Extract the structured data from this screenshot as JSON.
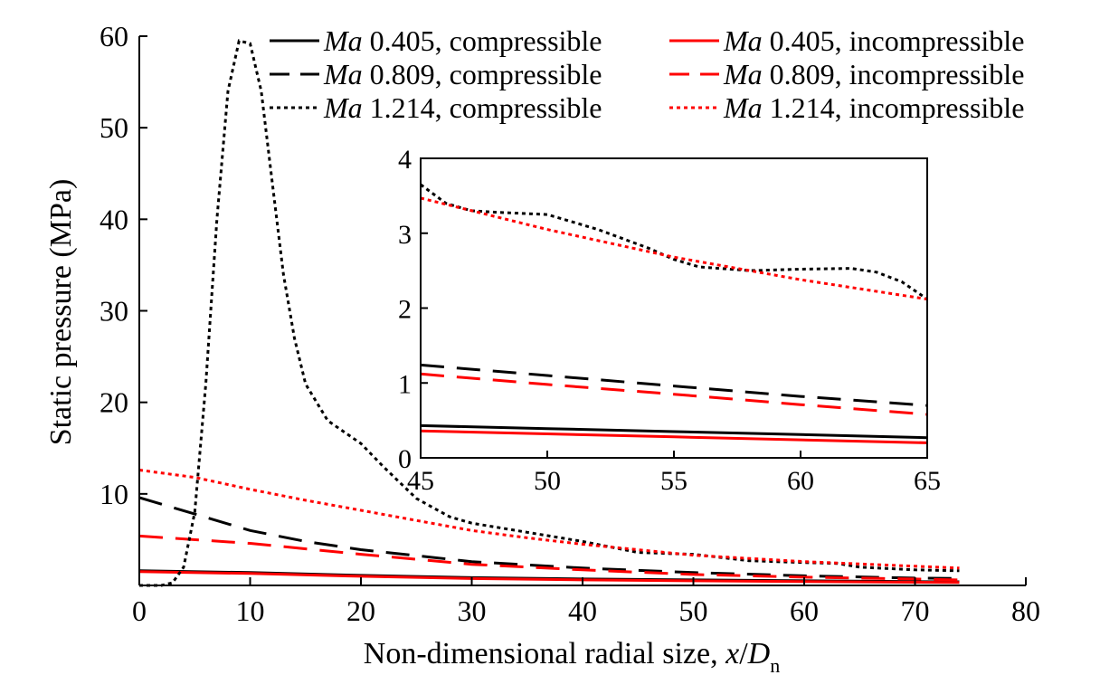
{
  "chart_data": [
    {
      "type": "line",
      "role": "main",
      "xlabel": "Non-dimensional radial size, x/D_n",
      "xlabel_parts": {
        "main": "Non-dimensional radial size, ",
        "var_x": "x",
        "slash": "/",
        "var_d": "D",
        "sub": "n"
      },
      "ylabel": "Static pressure (MPa)",
      "xlim": [
        0,
        80
      ],
      "ylim": [
        0,
        60
      ],
      "xticks": [
        0,
        10,
        20,
        30,
        40,
        50,
        60,
        70,
        80
      ],
      "yticks": [
        10,
        20,
        30,
        40,
        50,
        60
      ],
      "xtick_labels": [
        "0",
        "10",
        "20",
        "30",
        "40",
        "50",
        "60",
        "70",
        "80"
      ],
      "ytick_labels": [
        "10",
        "20",
        "30",
        "40",
        "50",
        "60"
      ],
      "grid": false,
      "legend_position": "top-right",
      "series": [
        {
          "name": "Ma 0.405, compressible",
          "legend_prefix": "Ma",
          "legend_rest": " 0.405, compressible",
          "color": "#000000",
          "style": "solid",
          "x": [
            0,
            10,
            20,
            30,
            40,
            50,
            60,
            70,
            74
          ],
          "y": [
            1.6,
            1.4,
            1.1,
            0.85,
            0.7,
            0.6,
            0.5,
            0.42,
            0.4
          ]
        },
        {
          "name": "Ma 0.405, incompressible",
          "legend_prefix": "Ma",
          "legend_rest": " 0.405, incompressible",
          "color": "#ff0000",
          "style": "solid",
          "x": [
            0,
            10,
            20,
            30,
            40,
            50,
            60,
            70,
            74
          ],
          "y": [
            1.5,
            1.3,
            1.0,
            0.75,
            0.6,
            0.5,
            0.42,
            0.35,
            0.32
          ]
        },
        {
          "name": "Ma 0.809, compressible",
          "legend_prefix": "Ma",
          "legend_rest": " 0.809, compressible",
          "color": "#000000",
          "style": "dashed",
          "x": [
            0,
            5,
            10,
            15,
            20,
            30,
            40,
            50,
            60,
            70,
            74
          ],
          "y": [
            9.6,
            7.8,
            6.0,
            4.8,
            3.9,
            2.6,
            1.9,
            1.4,
            1.05,
            0.8,
            0.75
          ]
        },
        {
          "name": "Ma 0.809, incompressible",
          "legend_prefix": "Ma",
          "legend_rest": " 0.809, incompressible",
          "color": "#ff0000",
          "style": "dashed",
          "x": [
            0,
            10,
            20,
            30,
            40,
            50,
            60,
            70,
            74
          ],
          "y": [
            5.4,
            4.6,
            3.4,
            2.3,
            1.7,
            1.2,
            0.9,
            0.7,
            0.6
          ]
        },
        {
          "name": "Ma 1.214, compressible",
          "legend_prefix": "Ma",
          "legend_rest": " 1.214, compressible",
          "color": "#000000",
          "style": "dotted",
          "x": [
            0,
            2,
            3,
            4,
            5,
            6,
            7,
            8,
            9,
            10,
            11,
            12,
            13,
            14,
            15,
            17,
            20,
            22,
            25,
            28,
            30,
            35,
            40,
            45,
            50,
            55,
            60,
            63,
            65,
            70,
            74
          ],
          "y": [
            0,
            0,
            0.3,
            2,
            8,
            22,
            40,
            54,
            59.5,
            59.2,
            54,
            44,
            34,
            27,
            22,
            18,
            15.5,
            13,
            9.5,
            7.5,
            6.8,
            5.8,
            4.8,
            3.6,
            3.4,
            2.7,
            2.5,
            2.4,
            2.0,
            1.7,
            1.6
          ]
        },
        {
          "name": "Ma 1.214, incompressible",
          "legend_prefix": "Ma",
          "legend_rest": " 1.214, incompressible",
          "color": "#ff0000",
          "style": "dotted",
          "x": [
            0,
            5,
            10,
            15,
            20,
            25,
            30,
            35,
            40,
            50,
            60,
            70,
            74
          ],
          "y": [
            12.6,
            11.8,
            10.5,
            9.3,
            8.2,
            7.1,
            6.0,
            5.2,
            4.5,
            3.3,
            2.6,
            2.1,
            1.9
          ]
        }
      ]
    },
    {
      "type": "line",
      "role": "inset",
      "xlim": [
        45,
        65
      ],
      "ylim": [
        0,
        4
      ],
      "xticks": [
        45,
        50,
        55,
        60,
        65
      ],
      "yticks": [
        0,
        1,
        2,
        3,
        4
      ],
      "xtick_labels": [
        "45",
        "50",
        "55",
        "60",
        "65"
      ],
      "ytick_labels": [
        "0",
        "1",
        "2",
        "3",
        "4"
      ],
      "grid": false,
      "series": [
        {
          "name": "Ma 0.405, compressible",
          "color": "#000000",
          "style": "solid",
          "x": [
            45,
            50,
            55,
            60,
            65
          ],
          "y": [
            0.43,
            0.39,
            0.35,
            0.31,
            0.27
          ]
        },
        {
          "name": "Ma 0.405, incompressible",
          "color": "#ff0000",
          "style": "solid",
          "x": [
            45,
            50,
            55,
            60,
            65
          ],
          "y": [
            0.36,
            0.32,
            0.28,
            0.24,
            0.2
          ]
        },
        {
          "name": "Ma 0.809, compressible",
          "color": "#000000",
          "style": "dashed",
          "x": [
            45,
            50,
            55,
            60,
            65
          ],
          "y": [
            1.24,
            1.1,
            0.96,
            0.82,
            0.7
          ]
        },
        {
          "name": "Ma 0.809, incompressible",
          "color": "#ff0000",
          "style": "dashed",
          "x": [
            45,
            50,
            55,
            60,
            65
          ],
          "y": [
            1.12,
            0.98,
            0.85,
            0.71,
            0.58
          ]
        },
        {
          "name": "Ma 1.214, compressible",
          "color": "#000000",
          "style": "dotted",
          "x": [
            45,
            46,
            47,
            48,
            50,
            52,
            54,
            55,
            56,
            58,
            60,
            62,
            63,
            64,
            65
          ],
          "y": [
            3.65,
            3.4,
            3.3,
            3.28,
            3.25,
            3.05,
            2.8,
            2.65,
            2.55,
            2.5,
            2.52,
            2.53,
            2.48,
            2.35,
            2.12
          ]
        },
        {
          "name": "Ma 1.214, incompressible",
          "color": "#ff0000",
          "style": "dotted",
          "x": [
            45,
            50,
            55,
            60,
            65
          ],
          "y": [
            3.47,
            3.05,
            2.68,
            2.38,
            2.12
          ]
        }
      ]
    }
  ]
}
